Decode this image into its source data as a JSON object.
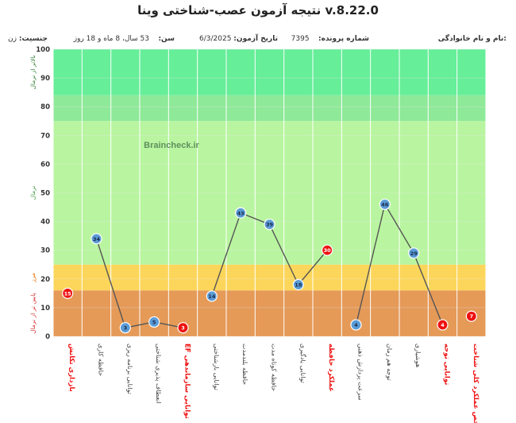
{
  "title": "نتیجه آزمون عصب-شناختی وینا v.8.22.0",
  "header": {
    "name_label": "نام و نام خانوادگی:",
    "name_value": "",
    "file_label": "شماره پرونده:",
    "file_value": "7395",
    "date_label": "تاریخ آزمون:",
    "date_value": "6/3/2025",
    "age_label": "سن:",
    "age_value": "53 سال، 8 ماه و 18 روز",
    "gender_label": "جنسیت:",
    "gender_value": "زن"
  },
  "watermark": "Braincheck.ir",
  "chart_data": {
    "type": "line",
    "ylim": [
      0,
      100
    ],
    "yticks": [
      0,
      10,
      20,
      30,
      40,
      50,
      60,
      70,
      80,
      90,
      100
    ],
    "zones": [
      {
        "label": "پایین تر از نرمال",
        "from": 0,
        "to": 16,
        "color": "#e59a58",
        "label_color": "#d32f2f"
      },
      {
        "label": "مرز",
        "from": 16,
        "to": 25,
        "color": "#fcd65a",
        "label_color": "#ef6c00"
      },
      {
        "label": "نرمال",
        "from": 25,
        "to": 75,
        "color": "#b9f5a0",
        "label_color": "#43a047"
      },
      {
        "label": "",
        "from": 75,
        "to": 84,
        "color": "#8ee998",
        "label_color": "#2e7d32"
      },
      {
        "label": "بالاتر از نرمال",
        "from": 84,
        "to": 100,
        "color": "#66ee99",
        "label_color": "#2e7d32"
      }
    ],
    "categories": [
      {
        "label": "شاخص عملکرد کلی شناخت",
        "value": 7,
        "summary": true
      },
      {
        "label": "توانایی توجه",
        "value": 4,
        "summary": true
      },
      {
        "label": "هوشیاری",
        "value": 29,
        "summary": false
      },
      {
        "label": "توجه هم زمان",
        "value": 46,
        "summary": false
      },
      {
        "label": "سرعت پردازش ذهنی",
        "value": 4,
        "summary": false
      },
      {
        "label": "عملکرد حافظه",
        "value": 30,
        "summary": true
      },
      {
        "label": "توانایی یادگیری",
        "value": 18,
        "summary": false
      },
      {
        "label": "حافظه کوتاه مدت",
        "value": 39,
        "summary": false
      },
      {
        "label": "حافظه بلندمدت",
        "value": 43,
        "summary": false
      },
      {
        "label": "توانایی بازشناختی",
        "value": 14,
        "summary": false
      },
      {
        "label": "توانایی سازماندهی EF",
        "value": 3,
        "summary": true
      },
      {
        "label": "انعطاف پذیری شناختی",
        "value": 5,
        "summary": false
      },
      {
        "label": "توانایی برنامه ریزی",
        "value": 3,
        "summary": false
      },
      {
        "label": "حافظه کاری",
        "value": 34,
        "summary": false
      },
      {
        "label": "بازداری تکانش",
        "value": 15,
        "summary": true
      }
    ],
    "series_groups": [
      [
        1,
        2,
        3,
        4
      ],
      [
        5,
        6,
        7,
        8,
        9
      ],
      [
        10,
        11,
        12,
        13
      ]
    ],
    "colors": {
      "summary_marker": "#ee1111",
      "sub_marker": "#5b9bd5",
      "line": "#555555",
      "summary_label": "#ee1111",
      "sub_label": "#444444",
      "grid_vertical": "#ffffff",
      "grid_horizontal": "#e5e5e5"
    }
  }
}
